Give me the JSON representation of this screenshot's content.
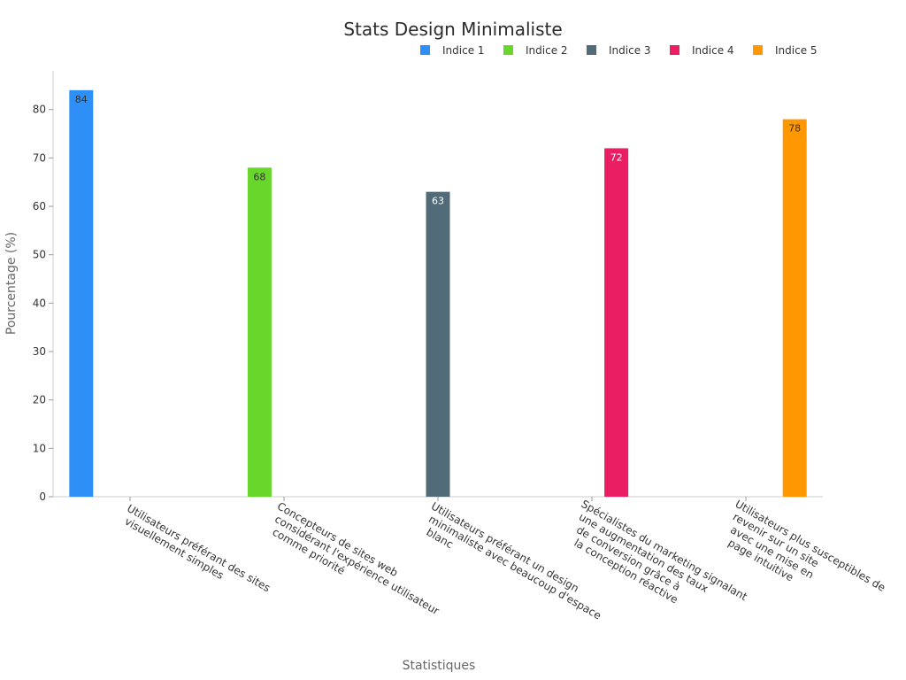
{
  "chart_data": {
    "type": "bar",
    "title": "Stats Design Minimaliste",
    "xlabel": "Statistiques",
    "ylabel": "Pourcentage (%)",
    "ylim": [
      0,
      88
    ],
    "yticks": [
      0,
      10,
      20,
      30,
      40,
      50,
      60,
      70,
      80
    ],
    "grid": false,
    "legend_position": "top-right",
    "categories": [
      [
        "Utilisateurs préférant des sites",
        "visuellement simples"
      ],
      [
        "Concepteurs de sites web",
        "considérant l'expérience utilisateur",
        "comme priorité"
      ],
      [
        "Utilisateurs préférant un design",
        "minimaliste avec beaucoup d'espace",
        "blanc"
      ],
      [
        "Spécialistes du marketing signalant",
        "une augmentation des taux",
        "de conversion grâce à",
        "la conception réactive"
      ],
      [
        "Utilisateurs plus susceptibles de",
        "revenir sur un site",
        "avec une mise en",
        "page intuitive"
      ]
    ],
    "series": [
      {
        "name": "Indice 1",
        "color": "#2E90F7",
        "label_color": "#333333",
        "values": [
          84,
          null,
          null,
          null,
          null
        ]
      },
      {
        "name": "Indice 2",
        "color": "#68D62A",
        "label_color": "#333333",
        "values": [
          null,
          68,
          null,
          null,
          null
        ]
      },
      {
        "name": "Indice 3",
        "color": "#526B78",
        "label_color": "#ffffff",
        "values": [
          null,
          null,
          63,
          null,
          null
        ]
      },
      {
        "name": "Indice 4",
        "color": "#E91E63",
        "label_color": "#ffffff",
        "values": [
          null,
          null,
          null,
          72,
          null
        ]
      },
      {
        "name": "Indice 5",
        "color": "#FF9800",
        "label_color": "#333333",
        "values": [
          null,
          null,
          null,
          null,
          78
        ]
      }
    ]
  }
}
